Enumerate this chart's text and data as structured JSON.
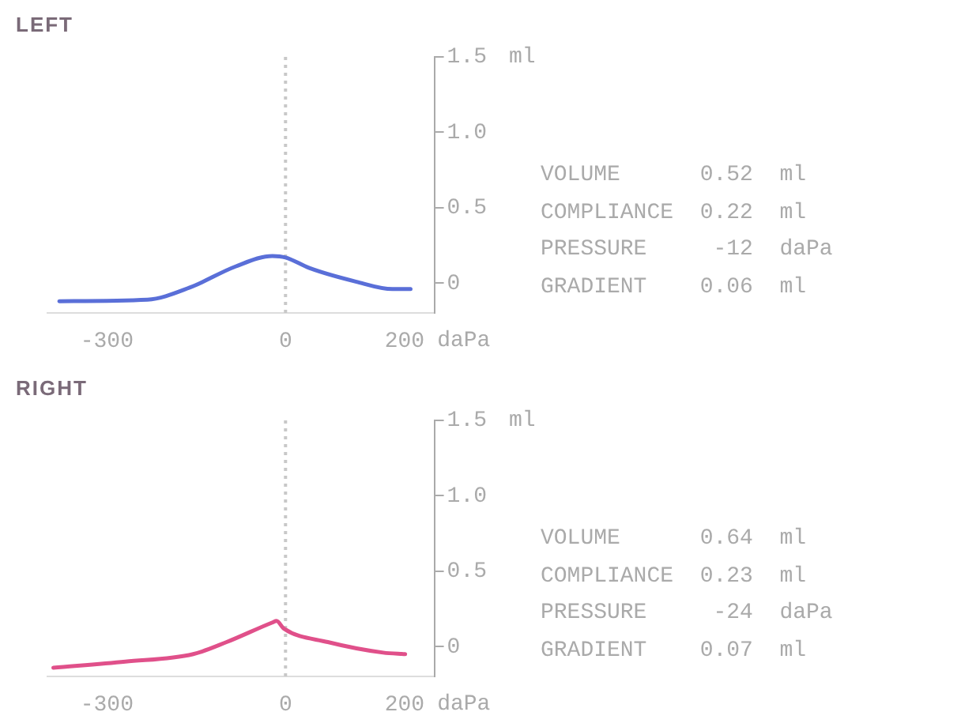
{
  "chart_data": [
    {
      "type": "line",
      "title": "LEFT",
      "xlabel": "daPa",
      "ylabel": "ml",
      "xlim": [
        -400,
        250
      ],
      "xticks": [
        -300,
        0,
        200
      ],
      "ylim": [
        -0.2,
        1.5
      ],
      "yticks": [
        0,
        0.5,
        {
          "value": 1,
          "label": "1.0"
        },
        1.5
      ],
      "grid": false,
      "legend": false,
      "marker": "none",
      "line_style": "solid",
      "ref_lines": [
        {
          "axis": "x",
          "value": 0,
          "color": "#c8c8c8",
          "line_style": "dotted"
        }
      ],
      "series": [
        {
          "color": "#5a6fd8",
          "x": [
            -380,
            -232,
            -161,
            -84,
            -22,
            0,
            40,
            118,
            180,
            210
          ],
          "values": [
            -0.12,
            -0.11,
            -0.03,
            0.11,
            0.18,
            0.17,
            0.1,
            0.01,
            -0.04,
            -0.04
          ]
        }
      ],
      "annotations": [
        "VOLUME      0.52  ml",
        "COMPLIANCE  0.22  ml",
        "PRESSURE     -12  daPa",
        "GRADIENT    0.06  ml"
      ]
    },
    {
      "type": "line",
      "title": "RIGHT",
      "xlabel": "daPa",
      "ylabel": "ml",
      "xlim": [
        -400,
        250
      ],
      "xticks": [
        -300,
        0,
        200
      ],
      "ylim": [
        -0.2,
        1.5
      ],
      "yticks": [
        0,
        0.5,
        {
          "value": 1,
          "label": "1.0"
        },
        1.5
      ],
      "grid": false,
      "legend": false,
      "marker": "none",
      "line_style": "solid",
      "ref_lines": [
        {
          "axis": "x",
          "value": 0,
          "color": "#c8c8c8",
          "line_style": "dotted"
        }
      ],
      "series": [
        {
          "color": "#e0508a",
          "x": [
            -390,
            -269,
            -155,
            -99,
            -22,
            -15,
            -3,
            71,
            164,
            201
          ],
          "values": [
            -0.14,
            -0.1,
            -0.05,
            0.03,
            0.16,
            0.17,
            0.12,
            0.03,
            -0.04,
            -0.05
          ]
        }
      ],
      "annotations": [
        "VOLUME      0.64  ml",
        "COMPLIANCE  0.23  ml",
        "PRESSURE     -24  daPa",
        "GRADIENT    0.07  ml"
      ]
    }
  ]
}
